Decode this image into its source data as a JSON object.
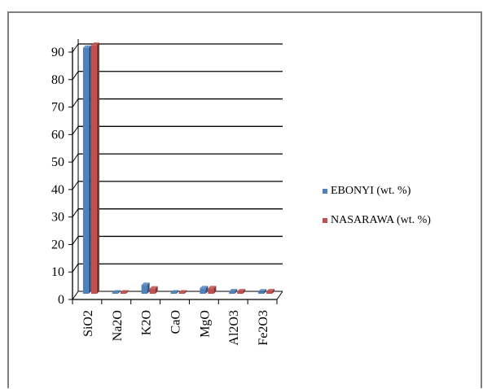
{
  "chart_data": {
    "type": "bar",
    "categories": [
      "SiO2",
      "Na2O",
      "K2O",
      "CaO",
      "MgO",
      "Al2O3",
      "Fe2O3"
    ],
    "series": [
      {
        "name": "EBONYI (wt. %)",
        "values": [
          89.5,
          0.3,
          3.2,
          0.2,
          2.0,
          0.9,
          0.8
        ],
        "color": "#4f81bd"
      },
      {
        "name": "NASARAWA (wt. %)",
        "values": [
          90.5,
          0.3,
          1.9,
          0.2,
          2.0,
          0.9,
          0.9
        ],
        "color": "#c0504d"
      }
    ],
    "yticks": [
      0,
      10,
      20,
      30,
      40,
      50,
      60,
      70,
      80,
      90
    ],
    "ylim": [
      0,
      90
    ],
    "grid": true,
    "legend_position": "right"
  }
}
